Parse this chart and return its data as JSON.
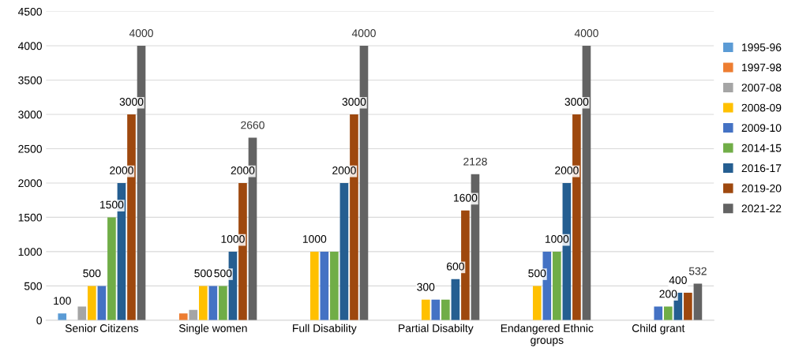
{
  "chart_data": {
    "type": "bar",
    "categories": [
      "Senior Citizens",
      "Single women",
      "Full Disability",
      "Partial Disabilty",
      "Endangered Ethnic\ngroups",
      "Child grant"
    ],
    "series": [
      {
        "name": "1995-96",
        "color": "#5b9bd5",
        "values": [
          100,
          null,
          null,
          null,
          null,
          null
        ],
        "value_labels": [
          "100",
          null,
          null,
          null,
          null,
          null
        ]
      },
      {
        "name": "1997-98",
        "color": "#ed7d31",
        "values": [
          null,
          100,
          null,
          null,
          null,
          null
        ],
        "value_labels": [
          null,
          null,
          null,
          null,
          null,
          null
        ]
      },
      {
        "name": "2007-08",
        "color": "#a5a5a5",
        "values": [
          200,
          150,
          null,
          null,
          null,
          null
        ],
        "value_labels": [
          null,
          null,
          null,
          null,
          null,
          null
        ]
      },
      {
        "name": "2008-09",
        "color": "#ffc000",
        "values": [
          500,
          500,
          1000,
          300,
          500,
          null
        ],
        "value_labels": [
          "500",
          "500",
          "1000",
          "300",
          "500",
          null
        ]
      },
      {
        "name": "2009-10",
        "color": "#4472c4",
        "values": [
          500,
          500,
          1000,
          300,
          1000,
          200
        ],
        "value_labels": [
          null,
          null,
          null,
          null,
          null,
          null
        ]
      },
      {
        "name": "2014-15",
        "color": "#70ad47",
        "values": [
          1500,
          500,
          1000,
          300,
          1000,
          200
        ],
        "value_labels": [
          "1500",
          "500",
          null,
          null,
          "1000",
          "200"
        ]
      },
      {
        "name": "2016-17",
        "color": "#255e91",
        "values": [
          2000,
          1000,
          2000,
          600,
          2000,
          400
        ],
        "value_labels": [
          "2000",
          "1000",
          "2000",
          "600",
          "2000",
          "400"
        ]
      },
      {
        "name": "2019-20",
        "color": "#9e480e",
        "values": [
          3000,
          2000,
          3000,
          1600,
          3000,
          400
        ],
        "value_labels": [
          "3000",
          "2000",
          "3000",
          "1600",
          "3000",
          null
        ]
      },
      {
        "name": "2021-22",
        "color": "#636363",
        "values": [
          4000,
          2660,
          4000,
          2128,
          4000,
          532
        ],
        "value_labels": [
          "4000",
          "2660",
          "4000",
          "2128",
          "4000",
          "532"
        ]
      }
    ],
    "ylim": [
      0,
      4500
    ],
    "yticks": [
      0,
      500,
      1000,
      1500,
      2000,
      2500,
      3000,
      3500,
      4000,
      4500
    ],
    "grid": "y",
    "legend": "right"
  }
}
